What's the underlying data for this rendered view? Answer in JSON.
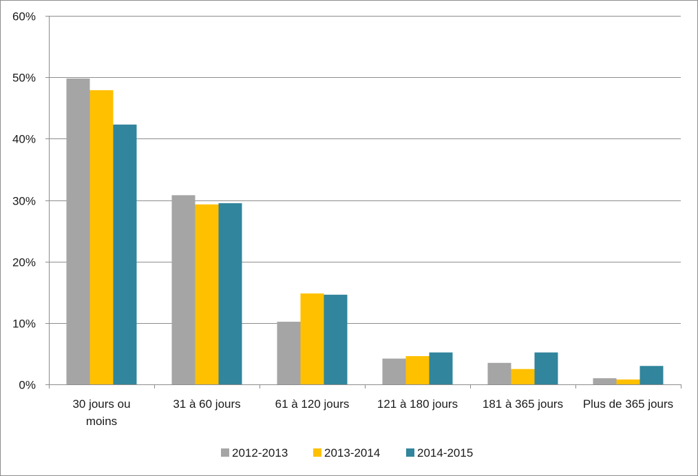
{
  "chart_data": {
    "type": "bar",
    "categories": [
      [
        "30 jours ou",
        "moins"
      ],
      [
        "31 à 60 jours"
      ],
      [
        "61 à 120 jours"
      ],
      [
        "121 à 180 jours"
      ],
      [
        "181 à 365 jours"
      ],
      [
        "Plus de 365 jours"
      ]
    ],
    "series": [
      {
        "name": "2012-2013",
        "color": "#a5a5a5",
        "values": [
          49.8,
          30.8,
          10.2,
          4.2,
          3.5,
          1.0
        ]
      },
      {
        "name": "2013-2014",
        "color": "#ffc000",
        "values": [
          47.9,
          29.3,
          14.8,
          4.6,
          2.5,
          0.8
        ]
      },
      {
        "name": "2014-2015",
        "color": "#31859c",
        "values": [
          42.3,
          29.5,
          14.6,
          5.2,
          5.2,
          3.0
        ]
      }
    ],
    "yticks": [
      "0%",
      "10%",
      "20%",
      "30%",
      "40%",
      "50%",
      "60%"
    ],
    "ylim": [
      0,
      60
    ],
    "grid": true,
    "legend_position": "bottom",
    "title": "",
    "xlabel": "",
    "ylabel": ""
  }
}
